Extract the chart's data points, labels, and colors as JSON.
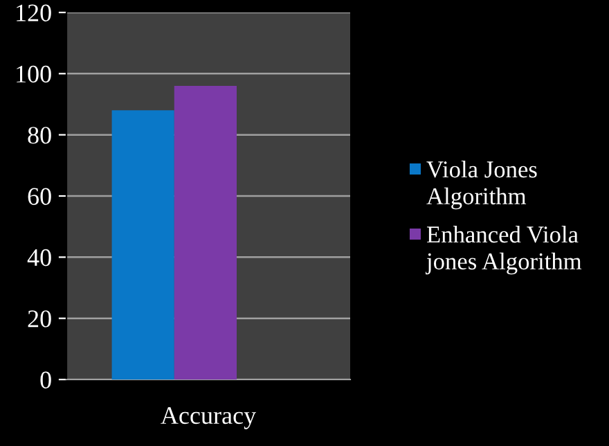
{
  "chart_data": {
    "type": "bar",
    "categories": [
      "Accuracy"
    ],
    "series": [
      {
        "name": "Viola Jones Algorithm",
        "color": "#0a78c8",
        "values": [
          88
        ]
      },
      {
        "name": "Enhanced Viola jones Algorithm",
        "color": "#7b3aa8",
        "values": [
          96
        ]
      }
    ],
    "ylim": [
      0,
      120
    ],
    "yticks": [
      0,
      20,
      40,
      60,
      80,
      100,
      120
    ],
    "grid": "y",
    "legend": "right"
  }
}
